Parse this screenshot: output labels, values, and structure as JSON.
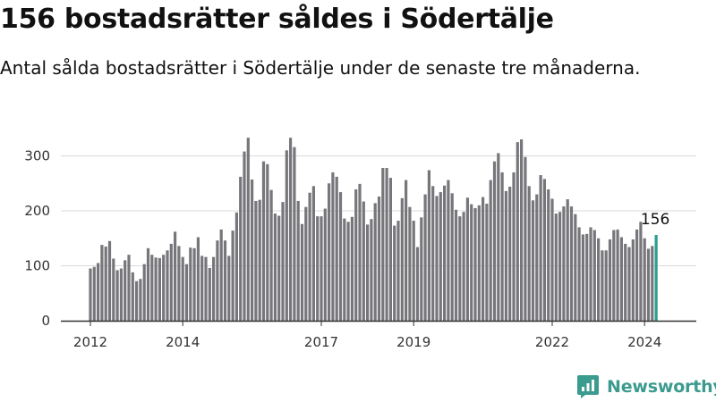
{
  "title": "156 bostadsrätter såldes i Södertälje",
  "subtitle": "Antal sålda bostadsrätter i Södertälje under de senaste tre månaderna.",
  "brand": {
    "name": "Newsworthy",
    "color": "#3b9b8f"
  },
  "colors": {
    "bar": "#76767b",
    "highlight": "#2a9d8f",
    "grid": "#d9d9d9",
    "axis": "#333333"
  },
  "chart_data": {
    "type": "bar",
    "title": "156 bostadsrätter såldes i Södertälje",
    "subtitle": "Antal sålda bostadsrätter i Södertälje under de senaste tre månaderna.",
    "xlabel": "",
    "ylabel": "",
    "ylim": [
      0,
      360
    ],
    "yticks": [
      0,
      100,
      200,
      300
    ],
    "xtick_labels": [
      "2012",
      "2014",
      "2017",
      "2019",
      "2022",
      "2024"
    ],
    "highlight_label": "156",
    "grid": true,
    "legend": "none",
    "values": [
      95,
      98,
      105,
      138,
      135,
      145,
      113,
      92,
      95,
      110,
      120,
      88,
      72,
      76,
      103,
      132,
      120,
      115,
      114,
      120,
      128,
      140,
      162,
      136,
      116,
      103,
      133,
      132,
      152,
      118,
      116,
      96,
      116,
      146,
      166,
      146,
      118,
      164,
      197,
      262,
      308,
      333,
      257,
      218,
      220,
      290,
      285,
      238,
      195,
      191,
      216,
      310,
      333,
      316,
      218,
      176,
      207,
      233,
      245,
      190,
      190,
      204,
      250,
      270,
      262,
      234,
      186,
      180,
      189,
      239,
      249,
      217,
      175,
      185,
      214,
      226,
      278,
      278,
      260,
      173,
      182,
      223,
      256,
      207,
      182,
      134,
      188,
      230,
      274,
      245,
      227,
      234,
      246,
      256,
      232,
      202,
      190,
      198,
      224,
      212,
      205,
      210,
      225,
      213,
      256,
      290,
      305,
      270,
      236,
      244,
      270,
      325,
      330,
      298,
      245,
      219,
      230,
      265,
      258,
      239,
      222,
      195,
      198,
      208,
      221,
      208,
      194,
      170,
      157,
      158,
      170,
      165,
      150,
      128,
      128,
      148,
      165,
      166,
      152,
      140,
      134,
      148,
      166,
      180,
      150,
      131,
      136,
      156
    ]
  }
}
